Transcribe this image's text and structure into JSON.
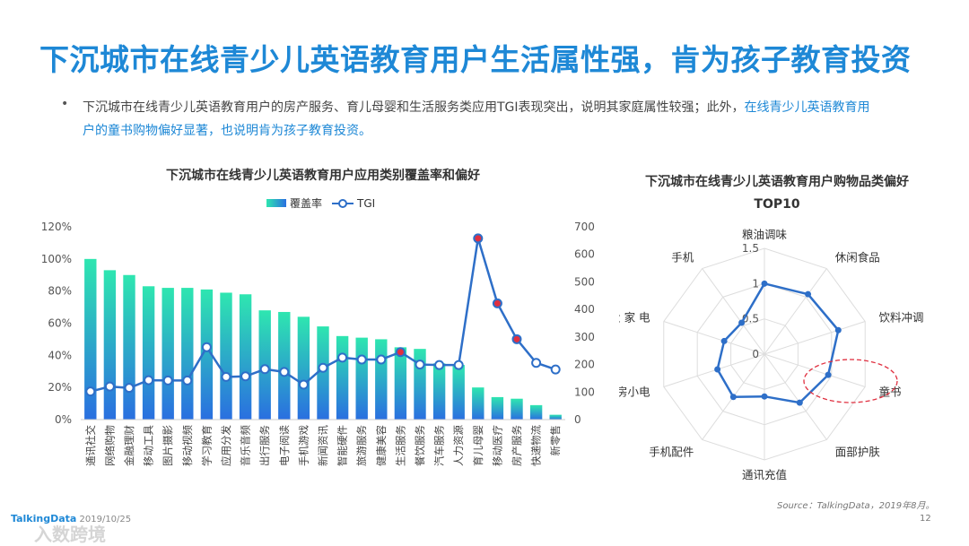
{
  "page": {
    "title": "下沉城市在线青少儿英语教育用户生活属性强，肯为孩子教育投资",
    "bullet_marker": "•",
    "bullet_text": "下沉城市在线青少儿英语教育用户的房产服务、育儿母婴和生活服务类应用TGI表现突出，说明其家庭属性较强；此外，",
    "bullet_highlight": "在线青少儿英语教育用户的童书购物偏好显著，也说明肯为孩子教育投资。",
    "footer_brand": "TalkingData",
    "footer_date": "2019/10/25",
    "watermark": "入数跨境",
    "source": "Source：TalkingData，2019年8月。",
    "page_number": "12"
  },
  "chart_data": [
    {
      "type": "bar",
      "title": "下沉城市在线青少儿英语教育用户应用类别覆盖率和偏好",
      "legend": [
        "覆盖率",
        "TGI"
      ],
      "categories": [
        "通讯社交",
        "网络购物",
        "金融理财",
        "移动工具",
        "图片摄影",
        "移动视频",
        "学习教育",
        "应用分发",
        "音乐音频",
        "出行服务",
        "电子阅读",
        "手机游戏",
        "新闻资讯",
        "智能硬件",
        "旅游服务",
        "健康美容",
        "生活服务",
        "餐饮服务",
        "汽车服务",
        "人力资源",
        "育儿母婴",
        "移动医疗",
        "房产服务",
        "快递物流",
        "新零售"
      ],
      "series": [
        {
          "name": "覆盖率",
          "axis": "left",
          "type": "bar",
          "values": [
            100,
            93,
            90,
            83,
            82,
            82,
            81,
            79,
            78,
            68,
            67,
            64,
            58,
            52,
            51,
            50,
            45,
            44,
            35,
            34,
            20,
            14,
            13,
            9,
            3
          ]
        },
        {
          "name": "TGI",
          "axis": "right",
          "type": "line",
          "values": [
            102,
            120,
            115,
            143,
            142,
            142,
            263,
            155,
            157,
            183,
            173,
            127,
            188,
            225,
            218,
            218,
            245,
            200,
            198,
            198,
            658,
            422,
            292,
            206,
            182
          ],
          "highlighted_indices": [
            16,
            20,
            21,
            22
          ]
        }
      ],
      "ylabel_left_ticks": [
        "0%",
        "20%",
        "40%",
        "60%",
        "80%",
        "100%",
        "120%"
      ],
      "ylabel_right_ticks": [
        "0",
        "100",
        "200",
        "300",
        "400",
        "500",
        "600",
        "700"
      ],
      "ylim_left": [
        0,
        120
      ],
      "ylim_right": [
        0,
        700
      ],
      "colors": {
        "bar_top": "#2ee6b0",
        "bar_bottom": "#2a6fe0",
        "line": "#2e6fc8",
        "highlight": "#e03040"
      }
    },
    {
      "type": "radar",
      "title_line1": "下沉城市在线青少儿英语教育用户购物品类偏好",
      "title_line2": "TOP10",
      "categories": [
        "粮油调味",
        "休闲食品",
        "饮料冲调",
        "童书",
        "面部护肤",
        "通讯充值",
        "手机配件",
        "厨房小电",
        "大 家 电",
        "手机"
      ],
      "values": [
        1.0,
        1.05,
        1.1,
        0.95,
        0.85,
        0.6,
        0.75,
        0.7,
        0.6,
        0.55
      ],
      "rlim": [
        0,
        1.5
      ],
      "ring_labels": [
        "0",
        "0.5",
        "1",
        "1.5"
      ],
      "highlight_category": "童书",
      "colors": {
        "line": "#2e6fc8",
        "grid": "#dddddd",
        "highlight": "#e03040"
      }
    }
  ]
}
